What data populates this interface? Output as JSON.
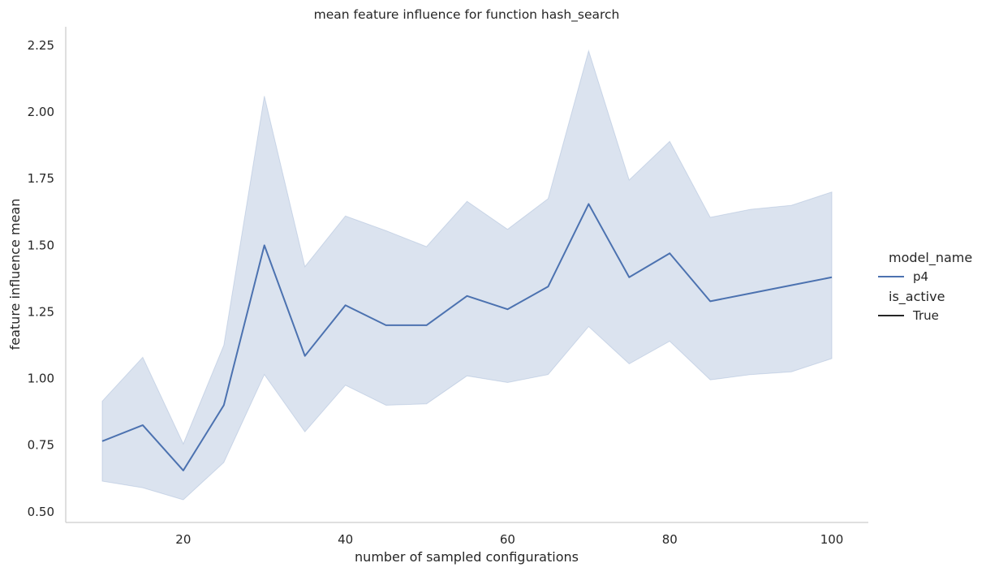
{
  "chart_data": {
    "type": "line",
    "title": "mean feature influence for function hash_search",
    "xlabel": "number of sampled configurations",
    "ylabel": "feature influence mean",
    "xlim": [
      5.5,
      104.5
    ],
    "ylim": [
      0.46,
      2.32
    ],
    "x_ticks": [
      20,
      40,
      60,
      80,
      100
    ],
    "y_ticks": [
      0.5,
      0.75,
      1.0,
      1.25,
      1.5,
      1.75,
      2.0,
      2.25
    ],
    "x_tick_labels": [
      "20",
      "40",
      "60",
      "80",
      "100"
    ],
    "y_tick_labels": [
      "0.50",
      "0.75",
      "1.00",
      "1.25",
      "1.50",
      "1.75",
      "2.00",
      "2.25"
    ],
    "grid": false,
    "legend_placement": "right",
    "legend": {
      "hue_title": "model_name",
      "hue_entries": [
        {
          "label": "p4",
          "color": "#4c72b0"
        }
      ],
      "style_title": "is_active",
      "style_entries": [
        {
          "label": "True",
          "color": "#262626"
        }
      ]
    },
    "x": [
      10,
      15,
      20,
      25,
      30,
      35,
      40,
      45,
      50,
      55,
      60,
      65,
      70,
      75,
      80,
      85,
      90,
      95,
      100
    ],
    "series": [
      {
        "name": "p4",
        "color": "#4c72b0",
        "band_color": "#4c72b0",
        "values": [
          0.765,
          0.825,
          0.655,
          0.9,
          1.5,
          1.085,
          1.275,
          1.2,
          1.2,
          1.31,
          1.26,
          1.345,
          1.655,
          1.38,
          1.47,
          1.29,
          1.32,
          1.35,
          1.38
        ],
        "ci_lower": [
          0.615,
          0.59,
          0.545,
          0.685,
          1.015,
          0.8,
          0.975,
          0.9,
          0.905,
          1.01,
          0.985,
          1.015,
          1.195,
          1.055,
          1.14,
          0.995,
          1.015,
          1.025,
          1.075
        ],
        "ci_upper": [
          0.915,
          1.08,
          0.755,
          1.125,
          2.06,
          1.42,
          1.61,
          1.555,
          1.495,
          1.665,
          1.56,
          1.675,
          2.23,
          1.745,
          1.89,
          1.605,
          1.635,
          1.65,
          1.7
        ]
      }
    ]
  }
}
